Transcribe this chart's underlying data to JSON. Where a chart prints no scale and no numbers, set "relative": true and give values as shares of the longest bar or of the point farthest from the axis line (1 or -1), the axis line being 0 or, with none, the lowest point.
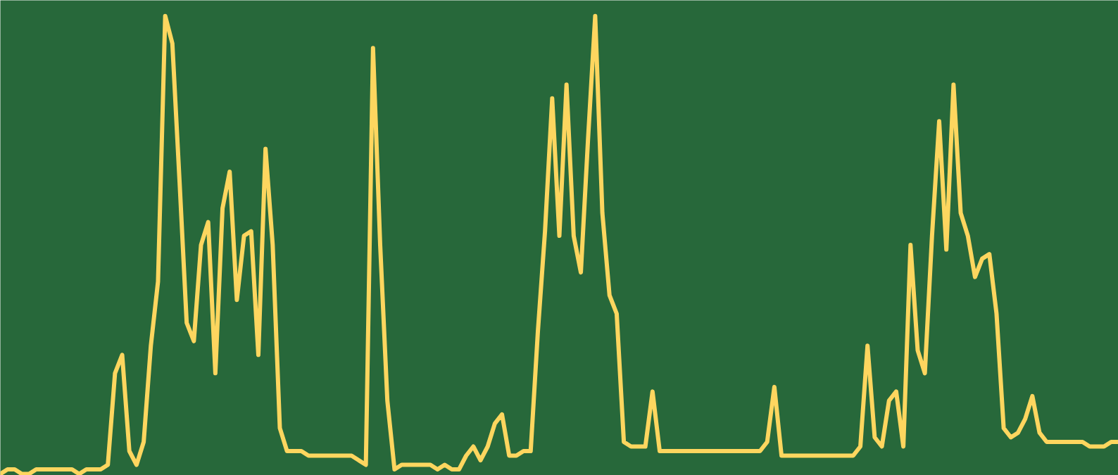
{
  "chart_data": {
    "type": "line",
    "relative": true,
    "tick_labels": false,
    "grid": false,
    "marker": "none",
    "line_style": "solid",
    "categories": [
      null,
      null,
      null,
      null,
      null,
      null,
      null,
      null,
      null,
      null,
      null,
      null,
      null,
      null,
      null,
      null,
      null,
      null,
      null,
      null,
      null,
      null,
      null,
      null,
      null,
      null,
      null,
      null,
      null,
      null,
      null,
      null,
      null,
      null,
      null,
      null,
      null,
      null,
      null,
      null,
      null,
      null,
      null,
      null,
      null,
      null,
      null,
      null,
      null,
      null,
      null,
      null,
      null,
      null,
      null,
      null,
      null,
      null,
      null,
      null,
      null,
      null,
      null,
      null,
      null,
      null,
      null,
      null,
      null,
      null,
      null,
      null,
      null,
      null,
      null,
      null,
      null,
      null,
      null,
      null,
      null,
      null,
      null,
      null,
      null,
      null,
      null,
      null,
      null,
      null,
      null,
      null,
      null,
      null,
      null,
      null,
      null,
      null,
      null,
      null,
      null,
      null,
      null,
      null,
      null,
      null,
      null,
      null,
      null,
      null,
      null,
      null,
      null,
      null,
      null,
      null,
      null,
      null,
      null,
      null,
      null,
      null,
      null,
      null,
      null,
      null,
      null,
      null,
      null,
      null,
      null,
      null,
      null,
      null,
      null,
      null,
      null,
      null,
      null,
      null,
      null,
      null,
      null,
      null,
      null,
      null,
      null,
      null,
      null,
      null,
      null,
      null,
      null,
      null,
      null,
      null,
      null
    ],
    "series": [
      {
        "color": "#fdd65f",
        "values": [
          0.0,
          0.01,
          0.01,
          0.0,
          0.0,
          0.01,
          0.01,
          0.01,
          0.01,
          0.01,
          0.01,
          0.0,
          0.01,
          0.01,
          0.01,
          0.02,
          0.22,
          0.26,
          0.05,
          0.02,
          0.07,
          0.28,
          0.42,
          1.0,
          0.94,
          0.64,
          0.33,
          0.29,
          0.5,
          0.55,
          0.22,
          0.58,
          0.66,
          0.38,
          0.52,
          0.53,
          0.26,
          0.71,
          0.5,
          0.1,
          0.05,
          0.05,
          0.05,
          0.04,
          0.04,
          0.04,
          0.04,
          0.04,
          0.04,
          0.04,
          0.03,
          0.02,
          0.93,
          0.5,
          0.16,
          0.01,
          0.02,
          0.02,
          0.02,
          0.02,
          0.02,
          0.01,
          0.02,
          0.01,
          0.01,
          0.04,
          0.06,
          0.03,
          0.06,
          0.11,
          0.13,
          0.04,
          0.04,
          0.05,
          0.05,
          0.31,
          0.53,
          0.82,
          0.52,
          0.85,
          0.52,
          0.44,
          0.73,
          1.0,
          0.57,
          0.39,
          0.35,
          0.07,
          0.06,
          0.06,
          0.06,
          0.18,
          0.05,
          0.05,
          0.05,
          0.05,
          0.05,
          0.05,
          0.05,
          0.05,
          0.05,
          0.05,
          0.05,
          0.05,
          0.05,
          0.05,
          0.05,
          0.07,
          0.19,
          0.04,
          0.04,
          0.04,
          0.04,
          0.04,
          0.04,
          0.04,
          0.04,
          0.04,
          0.04,
          0.04,
          0.06,
          0.28,
          0.08,
          0.06,
          0.16,
          0.18,
          0.06,
          0.5,
          0.27,
          0.22,
          0.52,
          0.77,
          0.49,
          0.85,
          0.57,
          0.52,
          0.43,
          0.47,
          0.48,
          0.35,
          0.1,
          0.08,
          0.09,
          0.12,
          0.17,
          0.09,
          0.07,
          0.07,
          0.07,
          0.07,
          0.07,
          0.07,
          0.06,
          0.06,
          0.06,
          0.07,
          0.07
        ]
      }
    ]
  }
}
